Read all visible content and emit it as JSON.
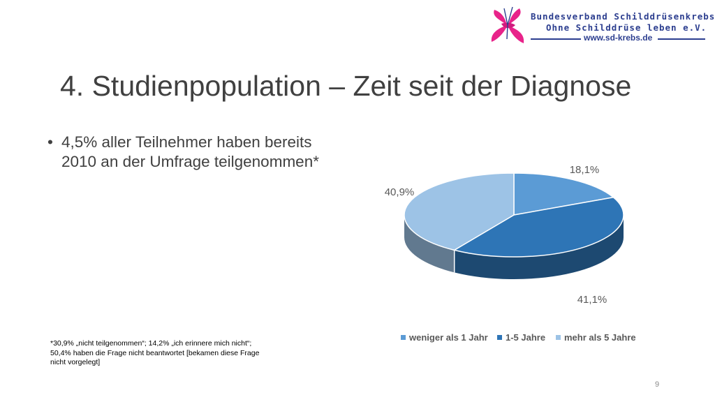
{
  "header": {
    "org_line1": "Bundesverband Schilddrüsenkrebs",
    "org_line2": "Ohne Schilddrüse leben e.V.",
    "website": "www.sd-krebs.de"
  },
  "slide": {
    "title": "4. Studienpopulation – Zeit seit der Diagnose",
    "bullet_symbol": "•",
    "bullet_text": "4,5% aller Teilnehmer haben bereits 2010 an der Umfrage teilgenommen*",
    "footnote": "*30,9% „nicht teilgenommen“; 14,2% „ich erinnere mich nicht“; 50,4% haben die Frage nicht beantwortet [bekamen diese Frage nicht vorgelegt]",
    "page_number": "9"
  },
  "chart_data": {
    "type": "pie",
    "style": "3d",
    "title": "",
    "categories": [
      "weniger als 1 Jahr",
      "1-5 Jahre",
      "mehr als 5 Jahre"
    ],
    "values": [
      18.1,
      41.1,
      40.9
    ],
    "data_labels": [
      "18,1%",
      "41,1%",
      "40,9%"
    ],
    "colors": [
      "#5b9bd5",
      "#2e75b6",
      "#9dc3e6"
    ],
    "legend_position": "bottom"
  }
}
